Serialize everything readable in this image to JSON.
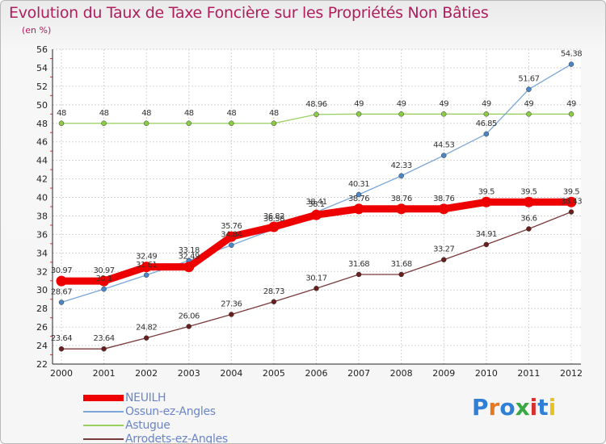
{
  "title": "Evolution du Taux de Taxe Foncière sur les Propriétés Non Bâties",
  "subtitle": "(en %)",
  "logo": {
    "text": "Proxiti",
    "colors": [
      "#2f7fd6",
      "#e8781e",
      "#2f7fd6",
      "#38a843",
      "#d62f2f",
      "#2f7fd6",
      "#e8c21e"
    ]
  },
  "chart_data": {
    "type": "line",
    "title": "Evolution du Taux de Taxe Foncière sur les Propriétés Non Bâties",
    "ylabel": "(en %)",
    "xlabel": "",
    "x": [
      "2000",
      "2001",
      "2002",
      "2003",
      "2004",
      "2005",
      "2006",
      "2007",
      "2008",
      "2009",
      "2010",
      "2011",
      "2012"
    ],
    "ylim": [
      22,
      56
    ],
    "yticks": [
      22,
      24,
      26,
      28,
      30,
      32,
      34,
      36,
      38,
      40,
      42,
      44,
      46,
      48,
      50,
      52,
      54,
      56
    ],
    "grid": true,
    "legend_position": "bottom-left",
    "series": [
      {
        "name": "NEUILH",
        "color": "#ee0000",
        "width": 9,
        "markerColor": "#ee0000",
        "values": [
          30.97,
          30.97,
          32.49,
          32.49,
          35.76,
          36.82,
          38.11,
          38.76,
          38.76,
          38.76,
          39.5,
          39.5,
          39.5
        ],
        "labels": [
          "30.97",
          "30.97",
          "32.49",
          "32.49",
          "35.76",
          "36.82",
          "38.1",
          "38.76",
          "38.76",
          "38.76",
          "39.5",
          "39.5",
          "39.5"
        ]
      },
      {
        "name": "Ossun-ez-Angles",
        "color": "#7aa6d8",
        "width": 1.3,
        "markerColor": "#4b86c6",
        "values": [
          28.67,
          30.1,
          31.61,
          33.18,
          34.84,
          36.58,
          38.41,
          40.31,
          42.33,
          44.53,
          46.85,
          51.67,
          54.38
        ],
        "labels": [
          "28.67",
          "30.1",
          "31.61",
          "33.18",
          "34.84",
          "36.58",
          "38.41",
          "40.31",
          "42.33",
          "44.53",
          "46.85",
          "51.67",
          "54.38"
        ]
      },
      {
        "name": "Astugue",
        "color": "#9ad060",
        "width": 1.3,
        "markerColor": "#8ccc45",
        "values": [
          48,
          48,
          48,
          48,
          48,
          48,
          48.96,
          49,
          49,
          49,
          49,
          49,
          49
        ],
        "labels": [
          "48",
          "48",
          "48",
          "48",
          "48",
          "48",
          "48.96",
          "49",
          "49",
          "49",
          "49",
          "49",
          "49"
        ]
      },
      {
        "name": "Arrodets-ez-Angles",
        "color": "#7a3a3a",
        "width": 1.3,
        "markerColor": "#6a1f1f",
        "values": [
          23.64,
          23.64,
          24.82,
          26.06,
          27.36,
          28.73,
          30.17,
          31.68,
          31.68,
          33.27,
          34.91,
          36.6,
          38.43
        ],
        "labels": [
          "23.64",
          "23.64",
          "24.82",
          "26.06",
          "27.36",
          "28.73",
          "30.17",
          "31.68",
          "31.68",
          "33.27",
          "34.91",
          "36.6",
          "38.43"
        ]
      }
    ]
  }
}
